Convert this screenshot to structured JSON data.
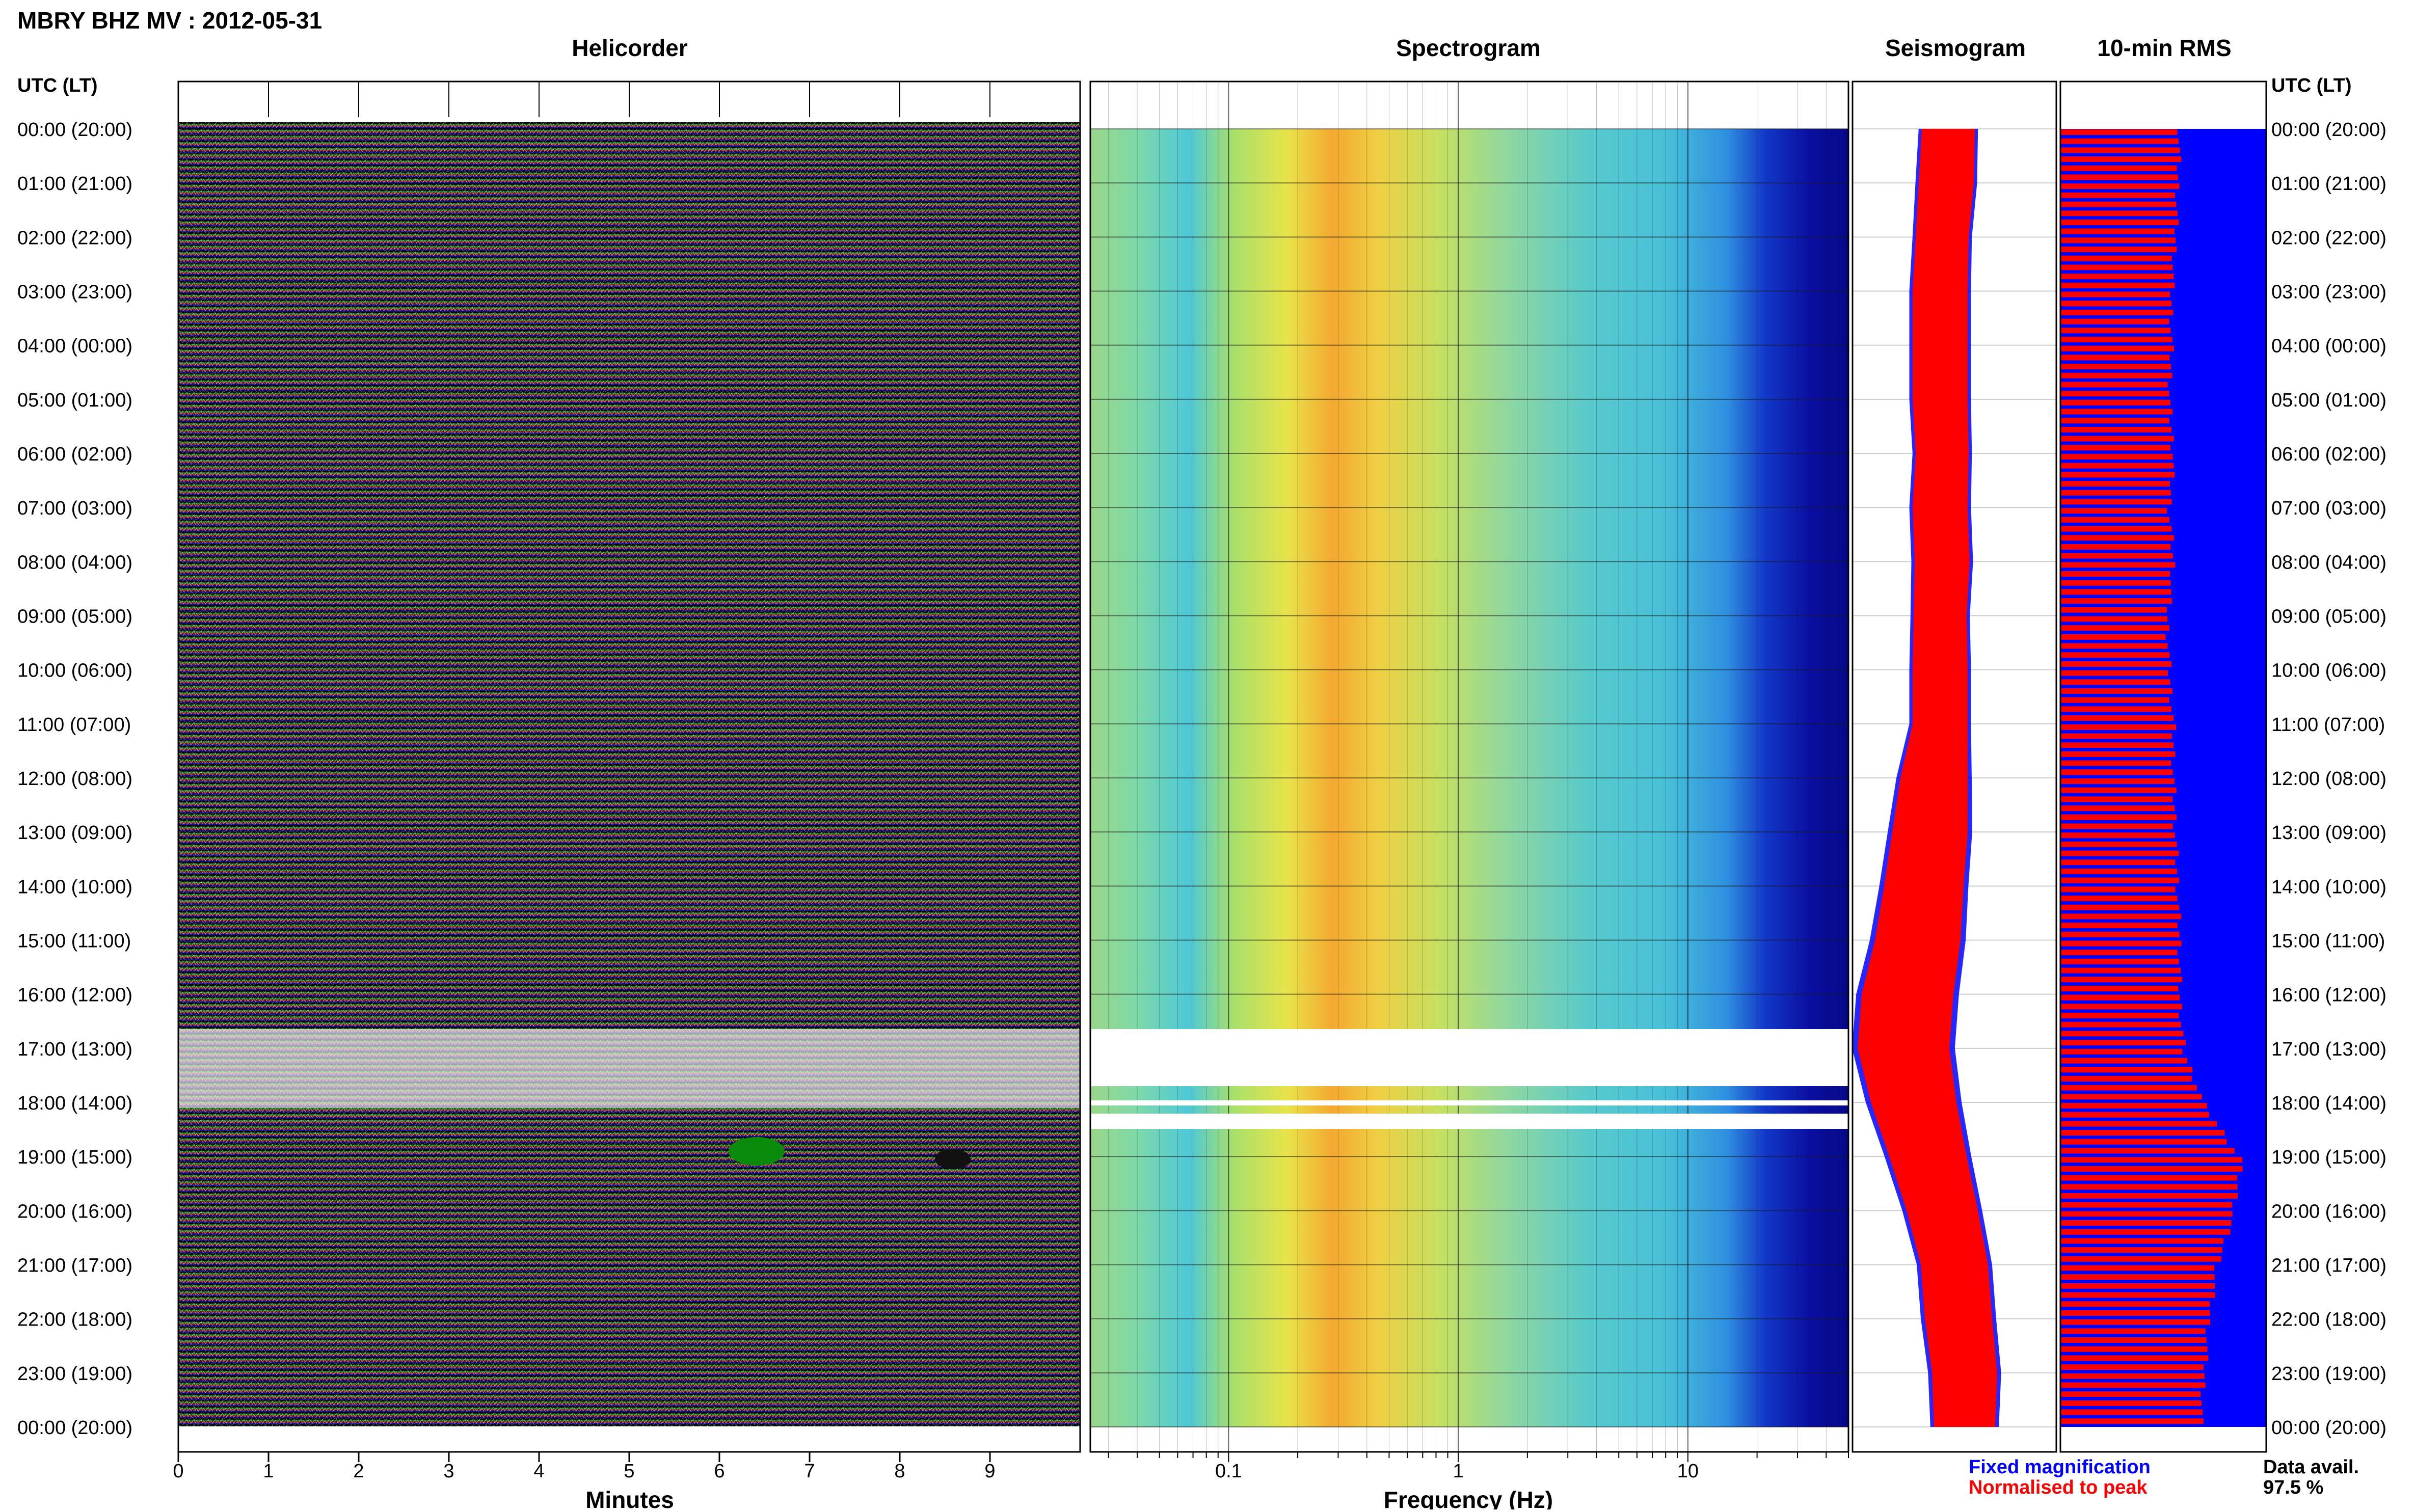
{
  "header": {
    "title": "MBRY BHZ MV : 2012-05-31",
    "time_axis_label": "UTC (LT)"
  },
  "panels": {
    "helicorder": "Helicorder",
    "spectrogram": "Spectrogram",
    "seismogram": "Seismogram",
    "rms": "10-min RMS"
  },
  "time_labels": [
    "00:00 (20:00)",
    "01:00 (21:00)",
    "02:00 (22:00)",
    "03:00 (23:00)",
    "04:00 (00:00)",
    "05:00 (01:00)",
    "06:00 (02:00)",
    "07:00 (03:00)",
    "08:00 (04:00)",
    "09:00 (05:00)",
    "10:00 (06:00)",
    "11:00 (07:00)",
    "12:00 (08:00)",
    "13:00 (09:00)",
    "14:00 (10:00)",
    "15:00 (11:00)",
    "16:00 (12:00)",
    "17:00 (13:00)",
    "18:00 (14:00)",
    "19:00 (15:00)",
    "20:00 (16:00)",
    "21:00 (17:00)",
    "22:00 (18:00)",
    "23:00 (19:00)",
    "00:00 (20:00)"
  ],
  "legend": {
    "fixed": "Fixed magnification",
    "normalised": "Normalised to peak",
    "fixed_color": "#0000ff",
    "normalised_color": "#ff0000"
  },
  "data_avail": {
    "label": "Data avail.",
    "value": "97.5 %"
  },
  "chart_data": [
    {
      "type": "line",
      "title": "Helicorder",
      "xlabel": "Minutes",
      "ylabel": "",
      "xlim": [
        0,
        10
      ],
      "x_ticks": [
        "0",
        "1",
        "2",
        "3",
        "4",
        "5",
        "6",
        "7",
        "8",
        "9"
      ],
      "trace_colors": [
        "#000000",
        "#006400",
        "#8b0000",
        "#00008b"
      ],
      "gap_hours": [
        17.0,
        18.0
      ],
      "event_hours": [
        19.0,
        19.1
      ]
    },
    {
      "type": "heatmap",
      "title": "Spectrogram",
      "xlabel": "Frequency (Hz)",
      "xscale": "log",
      "xlim": [
        0.025,
        50
      ],
      "x_ticks": [
        "0.1",
        "1",
        "10"
      ],
      "gaps_hours": [
        [
          16.6,
          17.6
        ],
        [
          18.0,
          18.05
        ],
        [
          18.2,
          18.35
        ]
      ],
      "colormap": "jet",
      "peak_band_hz": [
        0.2,
        0.5
      ]
    },
    {
      "type": "area",
      "title": "Seismogram",
      "series": [
        {
          "name": "Fixed magnification",
          "color": "#0000ff"
        },
        {
          "name": "Normalised to peak",
          "color": "#ff0000"
        }
      ],
      "hours": [
        0,
        1,
        2,
        3,
        4,
        5,
        6,
        7,
        8,
        9,
        10,
        11,
        12,
        13,
        14,
        15,
        16,
        17,
        18,
        19,
        20,
        21,
        22,
        23,
        24
      ],
      "half_width": [
        0.26,
        0.27,
        0.26,
        0.27,
        0.27,
        0.27,
        0.26,
        0.27,
        0.27,
        0.26,
        0.27,
        0.27,
        0.33,
        0.37,
        0.39,
        0.42,
        0.45,
        0.45,
        0.42,
        0.38,
        0.35,
        0.33,
        0.33,
        0.32,
        0.3
      ],
      "center": [
        0.47,
        0.46,
        0.44,
        0.43,
        0.43,
        0.43,
        0.44,
        0.43,
        0.44,
        0.43,
        0.43,
        0.43,
        0.4,
        0.38,
        0.35,
        0.32,
        0.27,
        0.25,
        0.3,
        0.37,
        0.44,
        0.5,
        0.52,
        0.55,
        0.55
      ]
    },
    {
      "type": "bar",
      "title": "10-min RMS",
      "series": [
        {
          "name": "Fixed magnification",
          "color": "#0000ff"
        },
        {
          "name": "Normalised to peak",
          "color": "#ff0000"
        }
      ],
      "hours": [
        0,
        1,
        2,
        3,
        4,
        5,
        6,
        7,
        8,
        9,
        10,
        11,
        12,
        13,
        14,
        15,
        16,
        17,
        18,
        19,
        20,
        21,
        22,
        23,
        24
      ],
      "level": [
        0.58,
        0.57,
        0.56,
        0.54,
        0.54,
        0.53,
        0.55,
        0.53,
        0.55,
        0.52,
        0.53,
        0.55,
        0.55,
        0.56,
        0.57,
        0.58,
        0.58,
        0.6,
        0.7,
        0.88,
        0.84,
        0.76,
        0.72,
        0.7,
        0.68
      ]
    }
  ]
}
